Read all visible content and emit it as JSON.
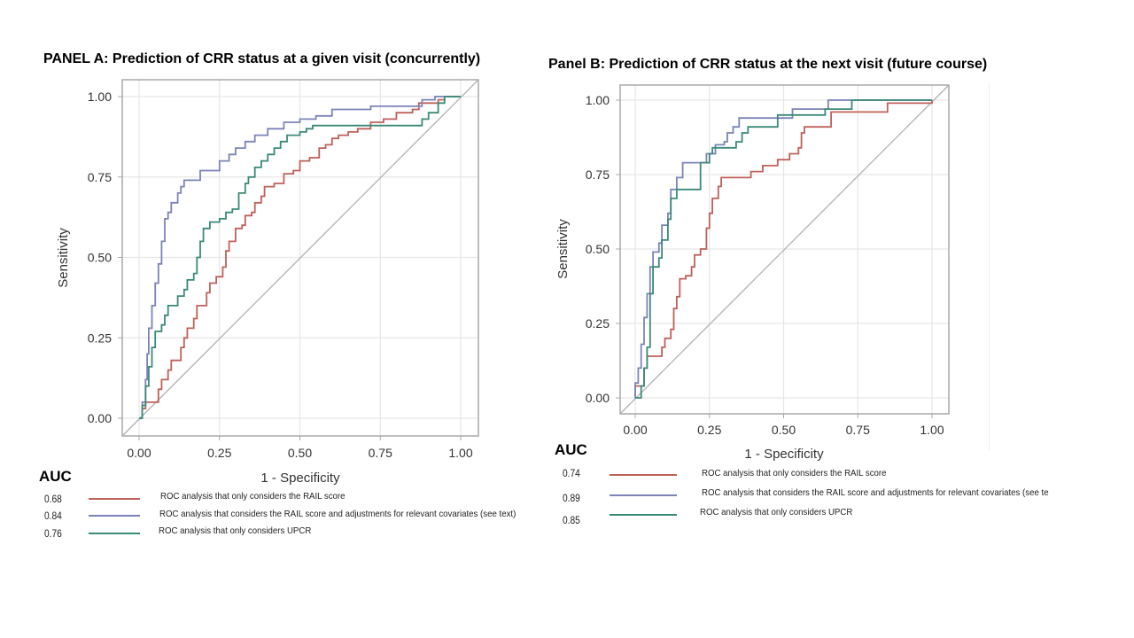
{
  "chart_data": [
    {
      "type": "line",
      "title": "PANEL  A: Prediction of CRR status at a given visit (concurrently)",
      "xlabel": "1 - Specificity",
      "ylabel": "Sensitivity",
      "xlim": [
        0,
        1
      ],
      "ylim": [
        0,
        1
      ],
      "xticks": [
        "0.00",
        "0.25",
        "0.50",
        "0.75",
        "1.00"
      ],
      "yticks": [
        "0.00",
        "0.25",
        "0.50",
        "0.75",
        "1.00"
      ],
      "grid": true,
      "reference_line": "diagonal",
      "legend_title": "AUC",
      "legend_position": "bottom",
      "series": [
        {
          "name": "ROC analysis that only considers the RAIL score",
          "auc": "0.68",
          "color": "#c0605a",
          "points": [
            [
              0,
              0
            ],
            [
              0.01,
              0.03
            ],
            [
              0.02,
              0.05
            ],
            [
              0.05,
              0.05
            ],
            [
              0.06,
              0.09
            ],
            [
              0.07,
              0.12
            ],
            [
              0.09,
              0.15
            ],
            [
              0.1,
              0.18
            ],
            [
              0.12,
              0.18
            ],
            [
              0.13,
              0.22
            ],
            [
              0.14,
              0.25
            ],
            [
              0.15,
              0.28
            ],
            [
              0.17,
              0.31
            ],
            [
              0.18,
              0.35
            ],
            [
              0.2,
              0.35
            ],
            [
              0.21,
              0.39
            ],
            [
              0.22,
              0.42
            ],
            [
              0.24,
              0.44
            ],
            [
              0.26,
              0.47
            ],
            [
              0.27,
              0.52
            ],
            [
              0.28,
              0.55
            ],
            [
              0.3,
              0.59
            ],
            [
              0.32,
              0.6
            ],
            [
              0.33,
              0.63
            ],
            [
              0.35,
              0.64
            ],
            [
              0.36,
              0.67
            ],
            [
              0.38,
              0.69
            ],
            [
              0.39,
              0.72
            ],
            [
              0.42,
              0.73
            ],
            [
              0.45,
              0.76
            ],
            [
              0.48,
              0.77
            ],
            [
              0.5,
              0.8
            ],
            [
              0.53,
              0.81
            ],
            [
              0.56,
              0.84
            ],
            [
              0.58,
              0.85
            ],
            [
              0.6,
              0.87
            ],
            [
              0.62,
              0.88
            ],
            [
              0.65,
              0.89
            ],
            [
              0.68,
              0.9
            ],
            [
              0.72,
              0.92
            ],
            [
              0.76,
              0.93
            ],
            [
              0.8,
              0.95
            ],
            [
              0.85,
              0.96
            ],
            [
              0.87,
              0.98
            ],
            [
              0.93,
              0.99
            ],
            [
              0.95,
              1.0
            ],
            [
              1,
              1
            ]
          ]
        },
        {
          "name": "ROC analysis that considers the RAIL score and adjustments for relevant covariates  (see text)",
          "auc": "0.84",
          "color": "#7b84b8",
          "points": [
            [
              0,
              0
            ],
            [
              0.01,
              0.05
            ],
            [
              0.02,
              0.12
            ],
            [
              0.025,
              0.2
            ],
            [
              0.03,
              0.28
            ],
            [
              0.04,
              0.35
            ],
            [
              0.05,
              0.42
            ],
            [
              0.06,
              0.48
            ],
            [
              0.07,
              0.55
            ],
            [
              0.08,
              0.62
            ],
            [
              0.09,
              0.64
            ],
            [
              0.1,
              0.67
            ],
            [
              0.12,
              0.7
            ],
            [
              0.13,
              0.72
            ],
            [
              0.14,
              0.74
            ],
            [
              0.17,
              0.74
            ],
            [
              0.19,
              0.77
            ],
            [
              0.23,
              0.77
            ],
            [
              0.25,
              0.8
            ],
            [
              0.28,
              0.82
            ],
            [
              0.3,
              0.84
            ],
            [
              0.33,
              0.86
            ],
            [
              0.36,
              0.88
            ],
            [
              0.4,
              0.9
            ],
            [
              0.45,
              0.92
            ],
            [
              0.5,
              0.93
            ],
            [
              0.55,
              0.94
            ],
            [
              0.6,
              0.96
            ],
            [
              0.67,
              0.96
            ],
            [
              0.72,
              0.97
            ],
            [
              0.87,
              0.97
            ],
            [
              0.88,
              0.99
            ],
            [
              0.92,
              1.0
            ],
            [
              1,
              1
            ]
          ]
        },
        {
          "name": "ROC analysis that only considers UPCR",
          "auc": "0.76",
          "color": "#3a8a78",
          "points": [
            [
              0,
              0
            ],
            [
              0.01,
              0.04
            ],
            [
              0.02,
              0.1
            ],
            [
              0.03,
              0.16
            ],
            [
              0.04,
              0.22
            ],
            [
              0.05,
              0.27
            ],
            [
              0.07,
              0.29
            ],
            [
              0.08,
              0.32
            ],
            [
              0.09,
              0.35
            ],
            [
              0.11,
              0.35
            ],
            [
              0.12,
              0.38
            ],
            [
              0.14,
              0.4
            ],
            [
              0.15,
              0.43
            ],
            [
              0.17,
              0.45
            ],
            [
              0.18,
              0.5
            ],
            [
              0.19,
              0.55
            ],
            [
              0.2,
              0.59
            ],
            [
              0.22,
              0.61
            ],
            [
              0.25,
              0.62
            ],
            [
              0.27,
              0.64
            ],
            [
              0.29,
              0.65
            ],
            [
              0.31,
              0.7
            ],
            [
              0.33,
              0.73
            ],
            [
              0.34,
              0.75
            ],
            [
              0.36,
              0.78
            ],
            [
              0.38,
              0.8
            ],
            [
              0.4,
              0.82
            ],
            [
              0.42,
              0.84
            ],
            [
              0.44,
              0.86
            ],
            [
              0.46,
              0.88
            ],
            [
              0.5,
              0.89
            ],
            [
              0.52,
              0.9
            ],
            [
              0.54,
              0.91
            ],
            [
              0.6,
              0.91
            ],
            [
              0.86,
              0.91
            ],
            [
              0.88,
              0.93
            ],
            [
              0.9,
              0.95
            ],
            [
              0.93,
              0.98
            ],
            [
              0.95,
              1.0
            ],
            [
              1,
              1
            ]
          ]
        }
      ]
    },
    {
      "type": "line",
      "title": "Panel B: Prediction of CRR status at the next visit (future course)",
      "xlabel": "1 - Specificity",
      "ylabel": "Sensitivity",
      "xlim": [
        0,
        1
      ],
      "ylim": [
        0,
        1
      ],
      "xticks": [
        "0.00",
        "0.25",
        "0.50",
        "0.75",
        "1.00"
      ],
      "yticks": [
        "0.00",
        "0.25",
        "0.50",
        "0.75",
        "1.00"
      ],
      "grid": true,
      "reference_line": "diagonal",
      "legend_title": "AUC",
      "legend_position": "bottom",
      "series": [
        {
          "name": "ROC analysis that only considers the RAIL score",
          "auc": "0.74",
          "color": "#c0605a",
          "points": [
            [
              0,
              0
            ],
            [
              0.0,
              0.04
            ],
            [
              0.02,
              0.04
            ],
            [
              0.03,
              0.1
            ],
            [
              0.04,
              0.14
            ],
            [
              0.08,
              0.14
            ],
            [
              0.09,
              0.17
            ],
            [
              0.1,
              0.2
            ],
            [
              0.12,
              0.23
            ],
            [
              0.13,
              0.3
            ],
            [
              0.14,
              0.34
            ],
            [
              0.15,
              0.4
            ],
            [
              0.17,
              0.41
            ],
            [
              0.19,
              0.44
            ],
            [
              0.2,
              0.48
            ],
            [
              0.22,
              0.5
            ],
            [
              0.24,
              0.57
            ],
            [
              0.25,
              0.62
            ],
            [
              0.26,
              0.67
            ],
            [
              0.28,
              0.71
            ],
            [
              0.29,
              0.74
            ],
            [
              0.38,
              0.74
            ],
            [
              0.39,
              0.76
            ],
            [
              0.43,
              0.78
            ],
            [
              0.48,
              0.8
            ],
            [
              0.5,
              0.8
            ],
            [
              0.52,
              0.82
            ],
            [
              0.55,
              0.84
            ],
            [
              0.56,
              0.89
            ],
            [
              0.57,
              0.91
            ],
            [
              0.65,
              0.91
            ],
            [
              0.66,
              0.96
            ],
            [
              0.84,
              0.96
            ],
            [
              0.85,
              0.99
            ],
            [
              1,
              1
            ]
          ]
        },
        {
          "name": "ROC analysis that considers the RAIL score and adjustments for relevant covariates  (see te",
          "auc": "0.89",
          "color": "#7b84b8",
          "points": [
            [
              0,
              0
            ],
            [
              0.0,
              0.05
            ],
            [
              0.01,
              0.1
            ],
            [
              0.02,
              0.18
            ],
            [
              0.03,
              0.27
            ],
            [
              0.04,
              0.35
            ],
            [
              0.05,
              0.44
            ],
            [
              0.06,
              0.49
            ],
            [
              0.08,
              0.52
            ],
            [
              0.09,
              0.58
            ],
            [
              0.11,
              0.62
            ],
            [
              0.12,
              0.7
            ],
            [
              0.14,
              0.74
            ],
            [
              0.16,
              0.79
            ],
            [
              0.21,
              0.79
            ],
            [
              0.24,
              0.82
            ],
            [
              0.27,
              0.85
            ],
            [
              0.3,
              0.86
            ],
            [
              0.31,
              0.89
            ],
            [
              0.33,
              0.91
            ],
            [
              0.35,
              0.94
            ],
            [
              0.49,
              0.94
            ],
            [
              0.53,
              0.97
            ],
            [
              0.65,
              1.0
            ],
            [
              1,
              1
            ]
          ]
        },
        {
          "name": "ROC analysis that only considers UPCR",
          "auc": "0.85",
          "color": "#3a8a78",
          "points": [
            [
              0,
              0
            ],
            [
              0.01,
              0.0
            ],
            [
              0.02,
              0.04
            ],
            [
              0.03,
              0.1
            ],
            [
              0.04,
              0.17
            ],
            [
              0.05,
              0.35
            ],
            [
              0.06,
              0.44
            ],
            [
              0.08,
              0.47
            ],
            [
              0.09,
              0.53
            ],
            [
              0.11,
              0.6
            ],
            [
              0.12,
              0.67
            ],
            [
              0.14,
              0.7
            ],
            [
              0.19,
              0.7
            ],
            [
              0.22,
              0.79
            ],
            [
              0.25,
              0.82
            ],
            [
              0.26,
              0.84
            ],
            [
              0.34,
              0.86
            ],
            [
              0.36,
              0.89
            ],
            [
              0.38,
              0.91
            ],
            [
              0.47,
              0.91
            ],
            [
              0.48,
              0.95
            ],
            [
              0.62,
              0.95
            ],
            [
              0.64,
              0.97
            ],
            [
              0.72,
              0.97
            ],
            [
              0.73,
              1.0
            ],
            [
              1,
              1
            ]
          ]
        }
      ]
    }
  ]
}
